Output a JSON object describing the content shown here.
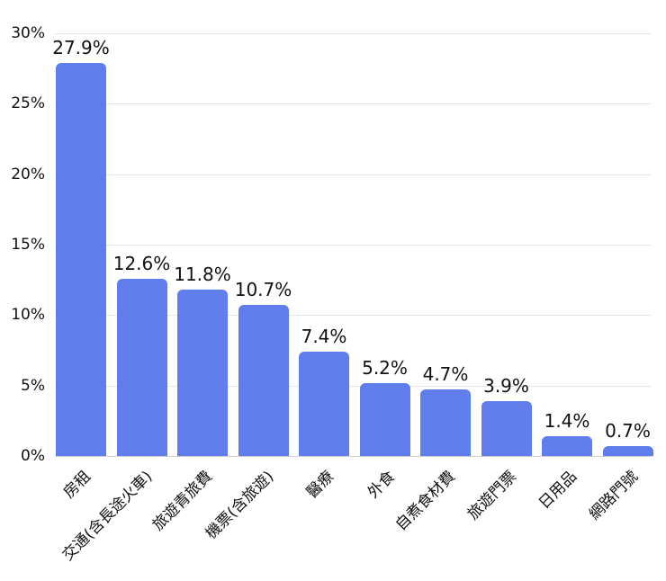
{
  "chart_data": {
    "type": "bar",
    "title": "",
    "xlabel": "",
    "ylabel": "",
    "ylim": [
      0,
      30
    ],
    "y_ticks": [
      "0%",
      "5%",
      "10%",
      "15%",
      "20%",
      "25%",
      "30%"
    ],
    "grid": true,
    "legend": "none",
    "bar_color": "#5f7eec",
    "categories": [
      "房租",
      "交通(含長途火車)",
      "旅遊青旅費",
      "機票(含旅遊)",
      "醫療",
      "外食",
      "自煮食材費",
      "旅遊門票",
      "日用品",
      "網路門號"
    ],
    "values": [
      27.9,
      12.6,
      11.8,
      10.7,
      7.4,
      5.2,
      4.7,
      3.9,
      1.4,
      0.7
    ],
    "value_labels": [
      "27.9%",
      "12.6%",
      "11.8%",
      "10.7%",
      "7.4%",
      "5.2%",
      "4.7%",
      "3.9%",
      "1.4%",
      "0.7%"
    ]
  }
}
